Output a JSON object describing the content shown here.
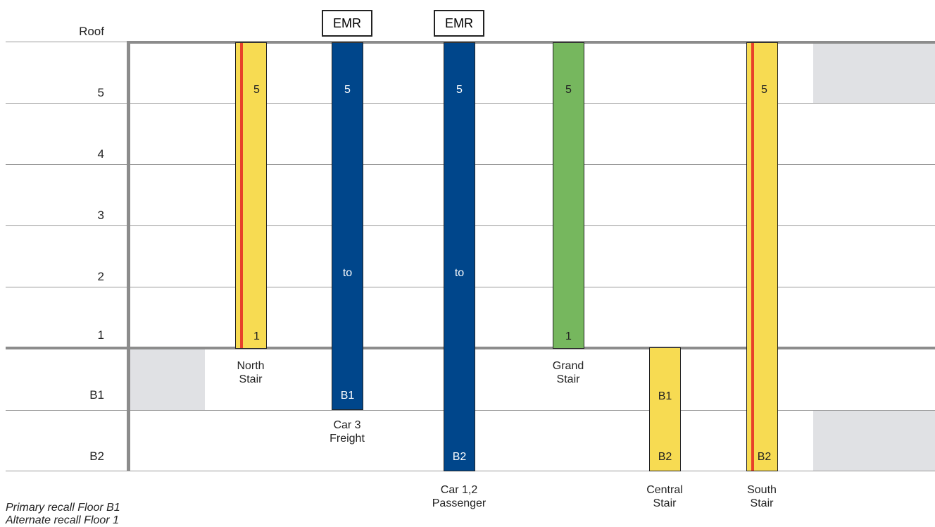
{
  "floors": [
    "Roof",
    "5",
    "4",
    "3",
    "2",
    "1",
    "B1",
    "B2"
  ],
  "emr_label": "EMR",
  "shafts": {
    "north_stair": {
      "top": "5",
      "bottom": "1",
      "caption": [
        "North",
        "Stair"
      ]
    },
    "car3": {
      "top": "5",
      "middle": "to",
      "bottom": "B1",
      "caption": [
        "Car 3",
        "Freight"
      ]
    },
    "car12": {
      "top": "5",
      "middle": "to",
      "bottom": "B2",
      "caption": [
        "Car 1,2",
        "Passenger"
      ]
    },
    "grand_stair": {
      "top": "5",
      "bottom": "1",
      "caption": [
        "Grand",
        "Stair"
      ]
    },
    "central_stair": {
      "top": "B1",
      "bottom": "B2",
      "caption": [
        "Central",
        "Stair"
      ]
    },
    "south_stair": {
      "top": "5",
      "bottom": "B2",
      "caption": [
        "South",
        "Stair"
      ]
    }
  },
  "legend": {
    "primary": "Primary recall Floor B1",
    "alternate": "Alternate recall Floor 1"
  },
  "colors": {
    "stair": "#f7db52",
    "elevator": "#00468b",
    "grand_stair": "#76b75e",
    "fire_stripe": "#e8412a",
    "shaded_area": "#e0e1e4"
  }
}
